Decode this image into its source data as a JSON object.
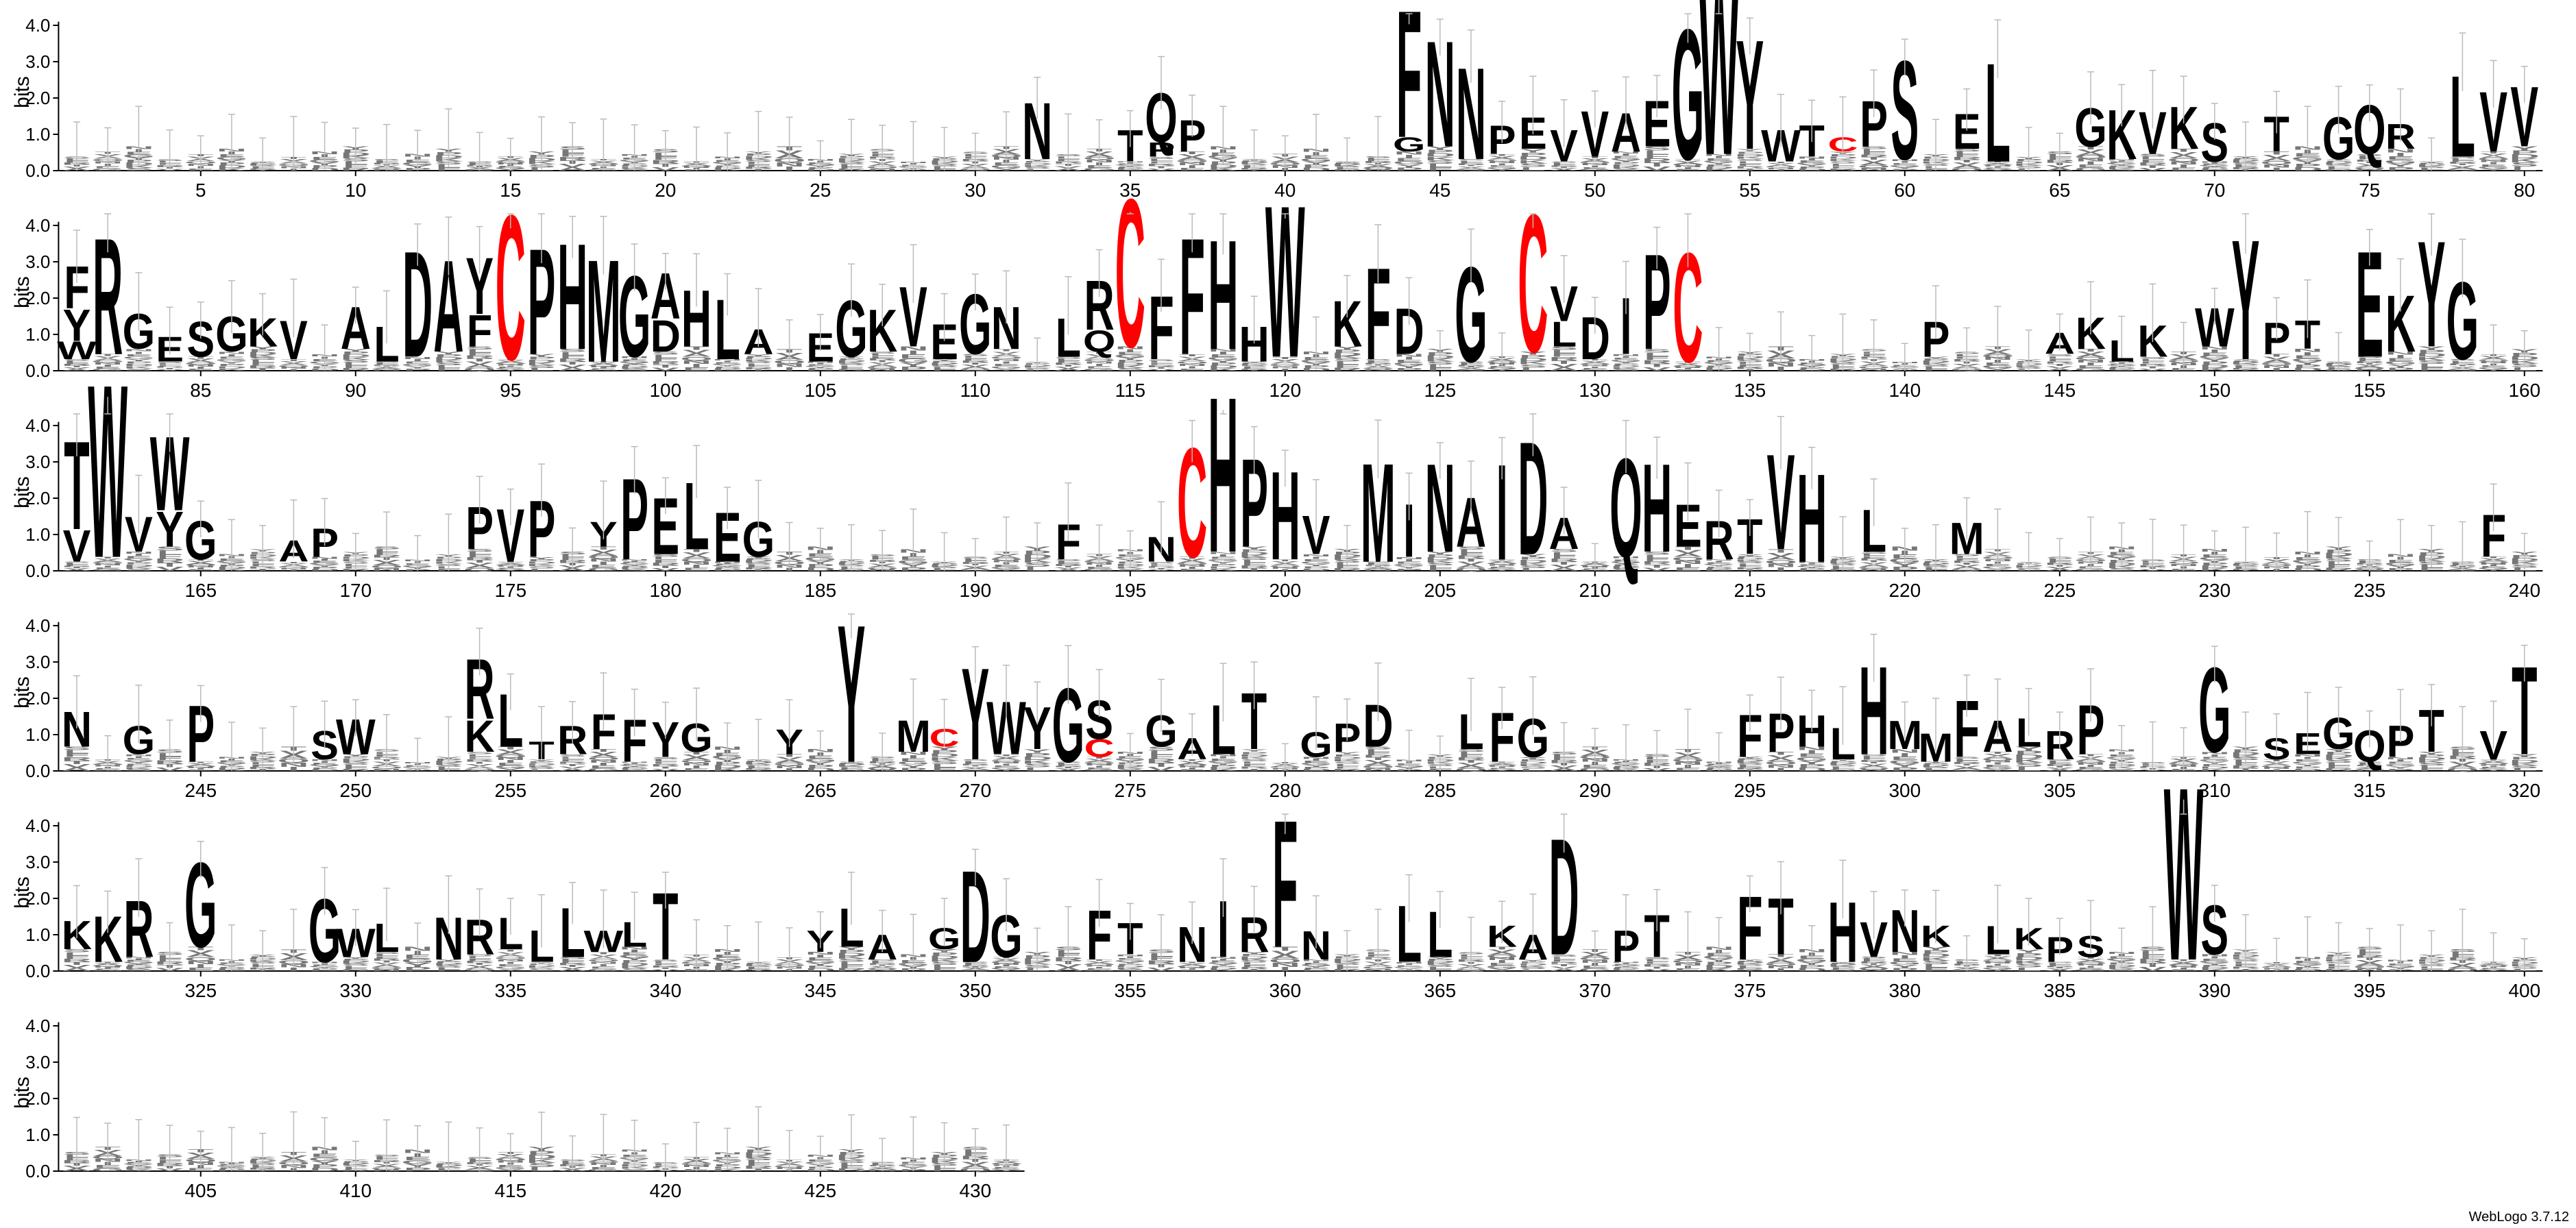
{
  "chart_data": {
    "type": "sequence-logo",
    "ylabel": "bits",
    "ylim": [
      0,
      4.32
    ],
    "yticks": [
      "0.0",
      "1.0",
      "2.0",
      "3.0",
      "4.0"
    ],
    "x_label_every": 5,
    "rows": [
      {
        "start": 1,
        "end": 80
      },
      {
        "start": 81,
        "end": 160
      },
      {
        "start": 161,
        "end": 240
      },
      {
        "start": 241,
        "end": 320
      },
      {
        "start": 321,
        "end": 400
      },
      {
        "start": 401,
        "end": 431
      }
    ],
    "colors": {
      "C": "#ff0000",
      "default": "#000000",
      "errorbar": "#bbbbbb",
      "faint": "#777777"
    },
    "positions": {
      "32": [
        [
          "N",
          1.6
        ]
      ],
      "35": [
        [
          "T",
          0.9
        ]
      ],
      "36": [
        [
          "Q",
          1.4
        ],
        [
          "P",
          0.4
        ]
      ],
      "37": [
        [
          "P",
          0.9
        ]
      ],
      "44": [
        [
          "F",
          3.6
        ],
        [
          "G",
          0.4
        ]
      ],
      "45": [
        [
          "N",
          3.0
        ]
      ],
      "46": [
        [
          "N",
          2.6
        ]
      ],
      "47": [
        [
          "P",
          0.8
        ]
      ],
      "48": [
        [
          "E",
          0.9
        ]
      ],
      "49": [
        [
          "V",
          0.9
        ]
      ],
      "50": [
        [
          "V",
          1.3
        ]
      ],
      "51": [
        [
          "A",
          1.1
        ]
      ],
      "52": [
        [
          "E",
          1.3
        ]
      ],
      "53": [
        [
          "G",
          3.7
        ]
      ],
      "54": [
        [
          "W",
          4.8
        ]
      ],
      "55": [
        [
          "Y",
          3.1
        ]
      ],
      "56": [
        [
          "W",
          0.9
        ]
      ],
      "57": [
        [
          "T",
          0.9
        ]
      ],
      "58": [
        [
          "C",
          0.4
        ]
      ],
      "59": [
        [
          "P",
          1.3
        ]
      ],
      "60": [
        [
          "S",
          2.8
        ]
      ],
      "62": [
        [
          "E",
          1.0
        ]
      ],
      "63": [
        [
          "L",
          2.8
        ]
      ],
      "66": [
        [
          "G",
          1.1
        ]
      ],
      "67": [
        [
          "K",
          1.4
        ]
      ],
      "68": [
        [
          "V",
          1.2
        ]
      ],
      "69": [
        [
          "K",
          1.2
        ]
      ],
      "70": [
        [
          "S",
          1.1
        ]
      ],
      "72": [
        [
          "T",
          1.0
        ]
      ],
      "74": [
        [
          "G",
          1.2
        ]
      ],
      "75": [
        [
          "Q",
          1.4
        ]
      ],
      "76": [
        [
          "R",
          0.7
        ]
      ],
      "78": [
        [
          "L",
          2.3
        ]
      ],
      "79": [
        [
          "V",
          1.7
        ]
      ],
      "80": [
        [
          "V",
          1.7
        ]
      ],
      "81": [
        [
          "F",
          1.2
        ],
        [
          "Y",
          0.9
        ],
        [
          "W",
          0.5
        ]
      ],
      "82": [
        [
          "R",
          3.3
        ]
      ],
      "83": [
        [
          "G",
          1.0
        ]
      ],
      "84": [
        [
          "E",
          0.7
        ]
      ],
      "85": [
        [
          "S",
          1.0
        ]
      ],
      "86": [
        [
          "G",
          1.0
        ]
      ],
      "87": [
        [
          "K",
          0.8
        ]
      ],
      "88": [
        [
          "V",
          1.1
        ]
      ],
      "90": [
        [
          "A",
          1.2
        ]
      ],
      "91": [
        [
          "L",
          1.0
        ]
      ],
      "92": [
        [
          "D",
          3.0
        ]
      ],
      "93": [
        [
          "A",
          2.6
        ]
      ],
      "94": [
        [
          "Y",
          1.6
        ],
        [
          "F",
          0.9
        ]
      ],
      "95": [
        [
          "C",
          4.1
        ]
      ],
      "96": [
        [
          "P",
          3.0
        ]
      ],
      "97": [
        [
          "H",
          3.0
        ]
      ],
      "98": [
        [
          "M",
          2.9
        ]
      ],
      "99": [
        [
          "G",
          2.3
        ]
      ],
      "100": [
        [
          "A",
          1.3
        ],
        [
          "D",
          0.9
        ]
      ],
      "101": [
        [
          "H",
          1.6
        ]
      ],
      "102": [
        [
          "L",
          1.7
        ]
      ],
      "103": [
        [
          "A",
          0.7
        ]
      ],
      "105": [
        [
          "E",
          0.8
        ]
      ],
      "106": [
        [
          "G",
          1.6
        ]
      ],
      "107": [
        [
          "K",
          1.2
        ]
      ],
      "108": [
        [
          "V",
          1.7
        ]
      ],
      "109": [
        [
          "E",
          1.0
        ]
      ],
      "110": [
        [
          "G",
          1.7
        ]
      ],
      "111": [
        [
          "N",
          1.2
        ]
      ],
      "113": [
        [
          "L",
          1.1
        ]
      ],
      "114": [
        [
          "R",
          1.4
        ],
        [
          "Q",
          0.6
        ]
      ],
      "115": [
        [
          "C",
          4.2
        ]
      ],
      "116": [
        [
          "F",
          1.8
        ]
      ],
      "117": [
        [
          "F",
          3.3
        ]
      ],
      "118": [
        [
          "H",
          3.1
        ]
      ],
      "119": [
        [
          "H",
          1.0
        ]
      ],
      "120": [
        [
          "W",
          4.3
        ]
      ],
      "122": [
        [
          "K",
          1.3
        ]
      ],
      "123": [
        [
          "F",
          2.6
        ]
      ],
      "124": [
        [
          "D",
          1.3
        ]
      ],
      "126": [
        [
          "G",
          2.7
        ]
      ],
      "128": [
        [
          "C",
          3.9
        ]
      ],
      "129": [
        [
          "V",
          1.0
        ],
        [
          "L",
          0.7
        ]
      ],
      "130": [
        [
          "D",
          1.2
        ]
      ],
      "131": [
        [
          "I",
          1.6
        ]
      ],
      "132": [
        [
          "P",
          2.7
        ]
      ],
      "133": [
        [
          "C",
          3.1
        ]
      ],
      "141": [
        [
          "P",
          1.0
        ]
      ],
      "145": [
        [
          "A",
          0.6
        ]
      ],
      "146": [
        [
          "K",
          0.9
        ]
      ],
      "147": [
        [
          "L",
          0.6
        ]
      ],
      "148": [
        [
          "K",
          0.9
        ]
      ],
      "150": [
        [
          "W",
          1.1
        ]
      ],
      "151": [
        [
          "Y",
          3.4
        ]
      ],
      "152": [
        [
          "P",
          0.9
        ]
      ],
      "153": [
        [
          "T",
          0.8
        ]
      ],
      "155": [
        [
          "E",
          3.0
        ]
      ],
      "156": [
        [
          "K",
          1.6
        ]
      ],
      "157": [
        [
          "Y",
          3.0
        ]
      ],
      "158": [
        [
          "G",
          2.2
        ]
      ],
      "161": [
        [
          "T",
          2.5
        ],
        [
          "V",
          0.9
        ]
      ],
      "162": [
        [
          "W",
          4.9
        ]
      ],
      "163": [
        [
          "V",
          1.0
        ]
      ],
      "164": [
        [
          "W",
          2.1
        ],
        [
          "Y",
          1.0
        ]
      ],
      "165": [
        [
          "G",
          1.1
        ]
      ],
      "168": [
        [
          "A",
          0.6
        ]
      ],
      "169": [
        [
          "P",
          0.8
        ]
      ],
      "174": [
        [
          "P",
          1.2
        ]
      ],
      "175": [
        [
          "V",
          1.5
        ]
      ],
      "176": [
        [
          "P",
          1.6
        ]
      ],
      "178": [
        [
          "Y",
          0.7
        ]
      ],
      "179": [
        [
          "P",
          2.3
        ]
      ],
      "180": [
        [
          "E",
          1.6
        ]
      ],
      "181": [
        [
          "L",
          1.9
        ]
      ],
      "182": [
        [
          "E",
          1.4
        ]
      ],
      "183": [
        [
          "G",
          1.0
        ]
      ],
      "193": [
        [
          "F",
          1.0
        ]
      ],
      "196": [
        [
          "N",
          0.7
        ]
      ],
      "197": [
        [
          "C",
          3.1
        ]
      ],
      "198": [
        [
          "H",
          4.4
        ]
      ],
      "199": [
        [
          "P",
          2.5
        ]
      ],
      "200": [
        [
          "H",
          2.5
        ]
      ],
      "201": [
        [
          "V",
          1.1
        ]
      ],
      "203": [
        [
          "M",
          2.8
        ]
      ],
      "204": [
        [
          "I",
          1.5
        ]
      ],
      "205": [
        [
          "N",
          2.5
        ]
      ],
      "206": [
        [
          "A",
          1.4
        ]
      ],
      "207": [
        [
          "I",
          2.7
        ]
      ],
      "208": [
        [
          "D",
          3.2
        ]
      ],
      "209": [
        [
          "A",
          0.9
        ]
      ],
      "211": [
        [
          "Q",
          2.8
        ]
      ],
      "212": [
        [
          "H",
          2.5
        ]
      ],
      "213": [
        [
          "E",
          1.2
        ]
      ],
      "214": [
        [
          "R",
          1.1
        ]
      ],
      "215": [
        [
          "T",
          1.0
        ]
      ],
      "216": [
        [
          "V",
          2.7
        ]
      ],
      "217": [
        [
          "H",
          2.5
        ]
      ],
      "219": [
        [
          "L",
          1.2
        ]
      ],
      "222": [
        [
          "M",
          0.9
        ]
      ],
      "239": [
        [
          "F",
          1.2
        ]
      ],
      "241": [
        [
          "N",
          1.0
        ]
      ],
      "243": [
        [
          "G",
          0.8
        ]
      ],
      "245": [
        [
          "P",
          1.6
        ]
      ],
      "249": [
        [
          "S",
          0.8
        ]
      ],
      "250": [
        [
          "W",
          1.0
        ]
      ],
      "254": [
        [
          "R",
          1.7
        ],
        [
          "K",
          0.9
        ]
      ],
      "255": [
        [
          "L",
          1.5
        ]
      ],
      "256": [
        [
          "T",
          0.5
        ]
      ],
      "257": [
        [
          "R",
          0.8
        ]
      ],
      "258": [
        [
          "F",
          1.0
        ]
      ],
      "259": [
        [
          "F",
          1.2
        ]
      ],
      "260": [
        [
          "Y",
          1.0
        ]
      ],
      "261": [
        [
          "G",
          0.8
        ]
      ],
      "264": [
        [
          "Y",
          0.7
        ]
      ],
      "266": [
        [
          "Y",
          3.9
        ]
      ],
      "268": [
        [
          "M",
          0.9
        ]
      ],
      "269": [
        [
          "C",
          0.5
        ]
      ],
      "270": [
        [
          "Y",
          2.6
        ]
      ],
      "271": [
        [
          "W",
          1.5
        ]
      ],
      "272": [
        [
          "Y",
          1.2
        ]
      ],
      "273": [
        [
          "G",
          2.1
        ]
      ],
      "274": [
        [
          "S",
          1.1
        ],
        [
          "C",
          0.5
        ]
      ],
      "276": [
        [
          "G",
          0.9
        ]
      ],
      "277": [
        [
          "A",
          0.6
        ]
      ],
      "278": [
        [
          "L",
          1.4
        ]
      ],
      "279": [
        [
          "T",
          1.6
        ]
      ],
      "281": [
        [
          "G",
          0.7
        ]
      ],
      "282": [
        [
          "P",
          0.8
        ]
      ],
      "283": [
        [
          "D",
          1.2
        ]
      ],
      "286": [
        [
          "L",
          1.0
        ]
      ],
      "287": [
        [
          "F",
          1.4
        ]
      ],
      "288": [
        [
          "G",
          1.1
        ]
      ],
      "295": [
        [
          "F",
          1.2
        ]
      ],
      "296": [
        [
          "P",
          1.1
        ]
      ],
      "297": [
        [
          "H",
          0.9
        ]
      ],
      "298": [
        [
          "L",
          0.9
        ]
      ],
      "299": [
        [
          "H",
          2.5
        ]
      ],
      "300": [
        [
          "M",
          0.8
        ]
      ],
      "301": [
        [
          "M",
          0.8
        ]
      ],
      "302": [
        [
          "F",
          1.6
        ]
      ],
      "303": [
        [
          "A",
          0.9
        ]
      ],
      "304": [
        [
          "L",
          0.8
        ]
      ],
      "305": [
        [
          "R",
          0.8
        ]
      ],
      "306": [
        [
          "P",
          1.4
        ]
      ],
      "310": [
        [
          "G",
          2.4
        ]
      ],
      "312": [
        [
          "S",
          0.6
        ]
      ],
      "313": [
        [
          "E",
          0.6
        ]
      ],
      "314": [
        [
          "G",
          0.9
        ]
      ],
      "315": [
        [
          "Q",
          0.9
        ]
      ],
      "316": [
        [
          "P",
          0.9
        ]
      ],
      "317": [
        [
          "T",
          1.2
        ]
      ],
      "319": [
        [
          "V",
          0.8
        ]
      ],
      "320": [
        [
          "T",
          2.5
        ]
      ],
      "321": [
        [
          "K",
          0.8
        ]
      ],
      "322": [
        [
          "K",
          1.3
        ]
      ],
      "323": [
        [
          "R",
          1.6
        ]
      ],
      "325": [
        [
          "G",
          2.4
        ]
      ],
      "329": [
        [
          "G",
          1.8
        ]
      ],
      "330": [
        [
          "W",
          0.8
        ]
      ],
      "331": [
        [
          "L",
          0.8
        ]
      ],
      "333": [
        [
          "N",
          1.2
        ]
      ],
      "334": [
        [
          "R",
          1.0
        ]
      ],
      "335": [
        [
          "L",
          0.9
        ]
      ],
      "336": [
        [
          "L",
          0.9
        ]
      ],
      "337": [
        [
          "L",
          1.4
        ]
      ],
      "338": [
        [
          "W",
          0.6
        ]
      ],
      "339": [
        [
          "L",
          0.7
        ]
      ],
      "340": [
        [
          "T",
          1.9
        ]
      ],
      "345": [
        [
          "Y",
          0.6
        ]
      ],
      "346": [
        [
          "L",
          1.1
        ]
      ],
      "347": [
        [
          "A",
          0.7
        ]
      ],
      "349": [
        [
          "G",
          0.6
        ]
      ],
      "350": [
        [
          "D",
          2.6
        ]
      ],
      "351": [
        [
          "G",
          1.2
        ]
      ],
      "354": [
        [
          "F",
          1.4
        ]
      ],
      "355": [
        [
          "T",
          0.9
        ]
      ],
      "357": [
        [
          "N",
          1.0
        ]
      ],
      "358": [
        [
          "I",
          1.6
        ]
      ],
      "359": [
        [
          "R",
          1.0
        ]
      ],
      "360": [
        [
          "F",
          3.6
        ]
      ],
      "361": [
        [
          "N",
          0.8
        ]
      ],
      "364": [
        [
          "L",
          1.6
        ]
      ],
      "365": [
        [
          "L",
          1.3
        ]
      ],
      "367": [
        [
          "K",
          0.6
        ]
      ],
      "368": [
        [
          "A",
          0.7
        ]
      ],
      "369": [
        [
          "D",
          3.3
        ]
      ],
      "371": [
        [
          "P",
          0.9
        ]
      ],
      "372": [
        [
          "T",
          1.2
        ]
      ],
      "375": [
        [
          "F",
          1.8
        ]
      ],
      "376": [
        [
          "T",
          1.6
        ]
      ],
      "378": [
        [
          "H",
          1.7
        ]
      ],
      "379": [
        [
          "V",
          1.0
        ]
      ],
      "380": [
        [
          "N",
          1.2
        ]
      ],
      "381": [
        [
          "K",
          0.6
        ]
      ],
      "383": [
        [
          "L",
          0.8
        ]
      ],
      "384": [
        [
          "K",
          0.6
        ]
      ],
      "385": [
        [
          "P",
          0.7
        ]
      ],
      "386": [
        [
          "S",
          0.6
        ]
      ],
      "389": [
        [
          "W",
          4.9
        ]
      ],
      "390": [
        [
          "S",
          1.4
        ]
      ]
    }
  },
  "footer": {
    "label": "WebLogo 3.7.12"
  }
}
